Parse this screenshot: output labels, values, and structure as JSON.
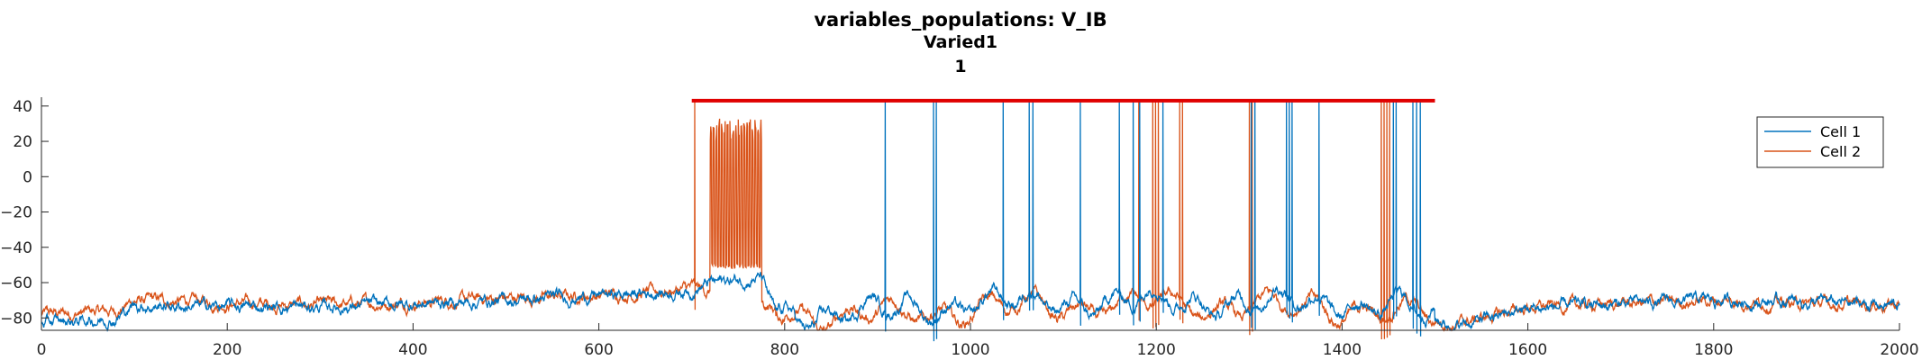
{
  "chart_data": {
    "type": "line",
    "title": "variables_populations: V_IB",
    "subtitle": "Varied1",
    "subtitle2": "1",
    "xlabel": "",
    "ylabel": "",
    "xlim": [
      0,
      2000
    ],
    "ylim": [
      -87,
      45
    ],
    "xticks": [
      0,
      200,
      400,
      600,
      800,
      1000,
      1200,
      1400,
      1600,
      1800,
      2000
    ],
    "yticks": [
      40,
      20,
      0,
      -20,
      -40,
      -60,
      -80
    ],
    "grid": false,
    "legend": "top-right",
    "series": [
      {
        "name": "Cell 1",
        "color": "#0072BD",
        "baseline": [
          [
            0,
            -83
          ],
          [
            80,
            -80
          ],
          [
            100,
            -73
          ],
          [
            300,
            -74
          ],
          [
            500,
            -70
          ],
          [
            650,
            -66
          ],
          [
            700,
            -64
          ],
          [
            720,
            -60
          ],
          [
            775,
            -57
          ],
          [
            790,
            -78
          ],
          [
            850,
            -78
          ],
          [
            1000,
            -72
          ],
          [
            1200,
            -70
          ],
          [
            1450,
            -72
          ],
          [
            1500,
            -80
          ],
          [
            1520,
            -85
          ],
          [
            1600,
            -75
          ],
          [
            1700,
            -72
          ],
          [
            1800,
            -70
          ],
          [
            1900,
            -71
          ],
          [
            2000,
            -73
          ]
        ],
        "spike_times": [
          908,
          960,
          963,
          1035,
          1063,
          1067,
          1118,
          1160,
          1175,
          1182,
          1207,
          1302,
          1306,
          1340,
          1343,
          1346,
          1375,
          1455,
          1458,
          1476,
          1480,
          1484
        ],
        "spike_peak": 43
      },
      {
        "name": "Cell 2",
        "color": "#D95319",
        "baseline": [
          [
            0,
            -78
          ],
          [
            80,
            -76
          ],
          [
            100,
            -70
          ],
          [
            300,
            -73
          ],
          [
            500,
            -69
          ],
          [
            650,
            -66
          ],
          [
            700,
            -63
          ],
          [
            790,
            -75
          ],
          [
            850,
            -80
          ],
          [
            1000,
            -75
          ],
          [
            1200,
            -73
          ],
          [
            1450,
            -75
          ],
          [
            1500,
            -81
          ],
          [
            1520,
            -84
          ],
          [
            1600,
            -74
          ],
          [
            1700,
            -72
          ],
          [
            1800,
            -70
          ],
          [
            1900,
            -72
          ],
          [
            2000,
            -72
          ]
        ],
        "spike_times": [
          703,
          1181,
          1196,
          1199,
          1202,
          1225,
          1228,
          1300,
          1303,
          1442,
          1445,
          1448,
          1451
        ],
        "spike_peak": 43,
        "burst": {
          "start": 720,
          "end": 775,
          "peak_min": 20,
          "peak_max": 33,
          "trough": -52
        }
      },
      {
        "name": "",
        "color": "#E00000",
        "x": [
          700,
          1500
        ],
        "y": [
          43,
          43
        ]
      }
    ]
  }
}
